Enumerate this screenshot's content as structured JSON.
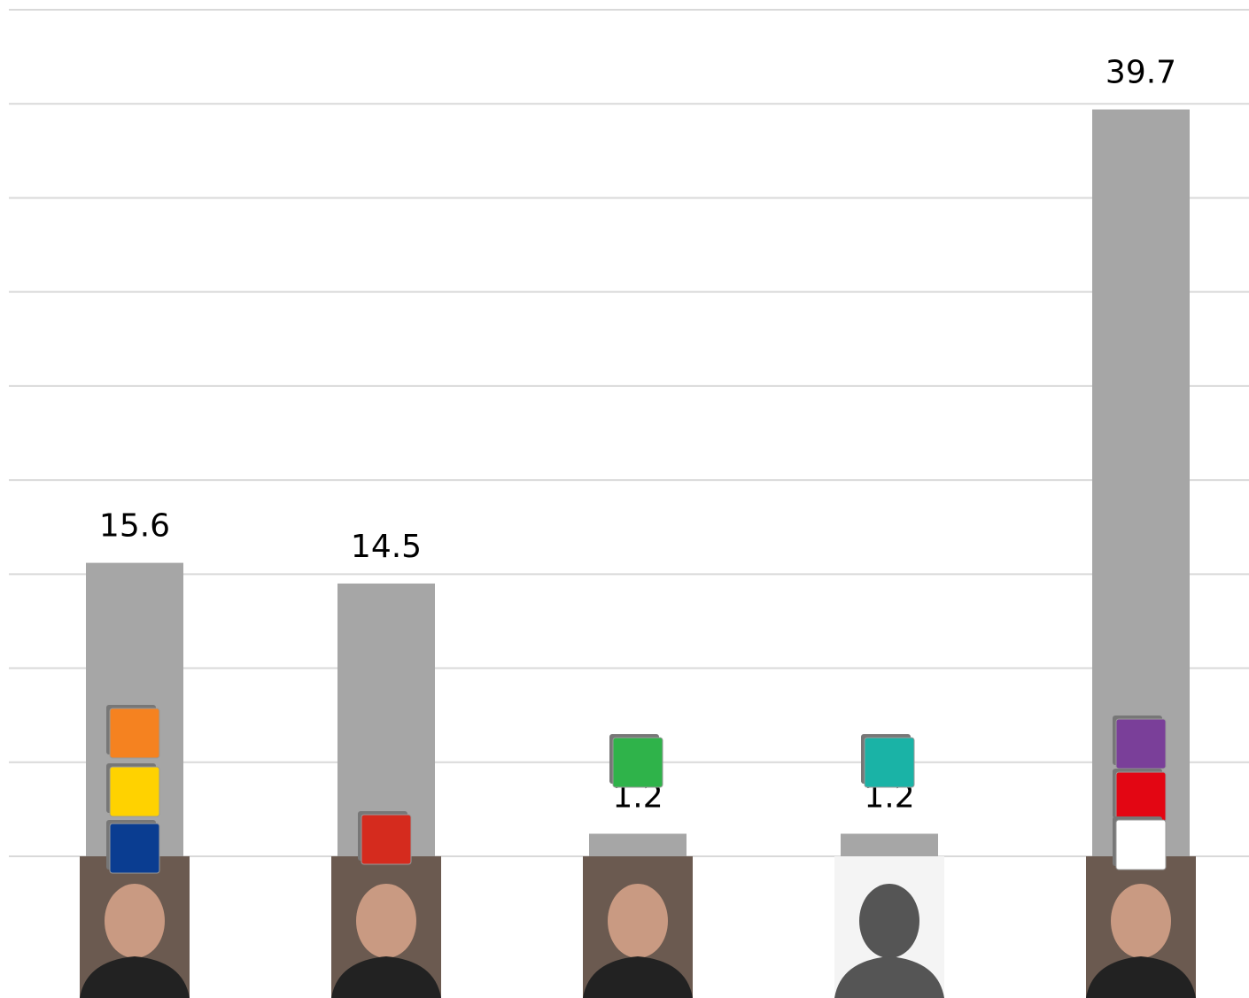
{
  "chart_data": {
    "type": "bar",
    "categories": [
      null,
      null,
      null,
      null,
      null
    ],
    "values": [
      15.6,
      14.5,
      1.2,
      1.2,
      39.7
    ],
    "color": "#a6a6a6",
    "ylim": [
      0,
      45
    ],
    "yticks": [
      0,
      5,
      10,
      15,
      20,
      25,
      30,
      35,
      40,
      45
    ],
    "grid": true
  }
}
